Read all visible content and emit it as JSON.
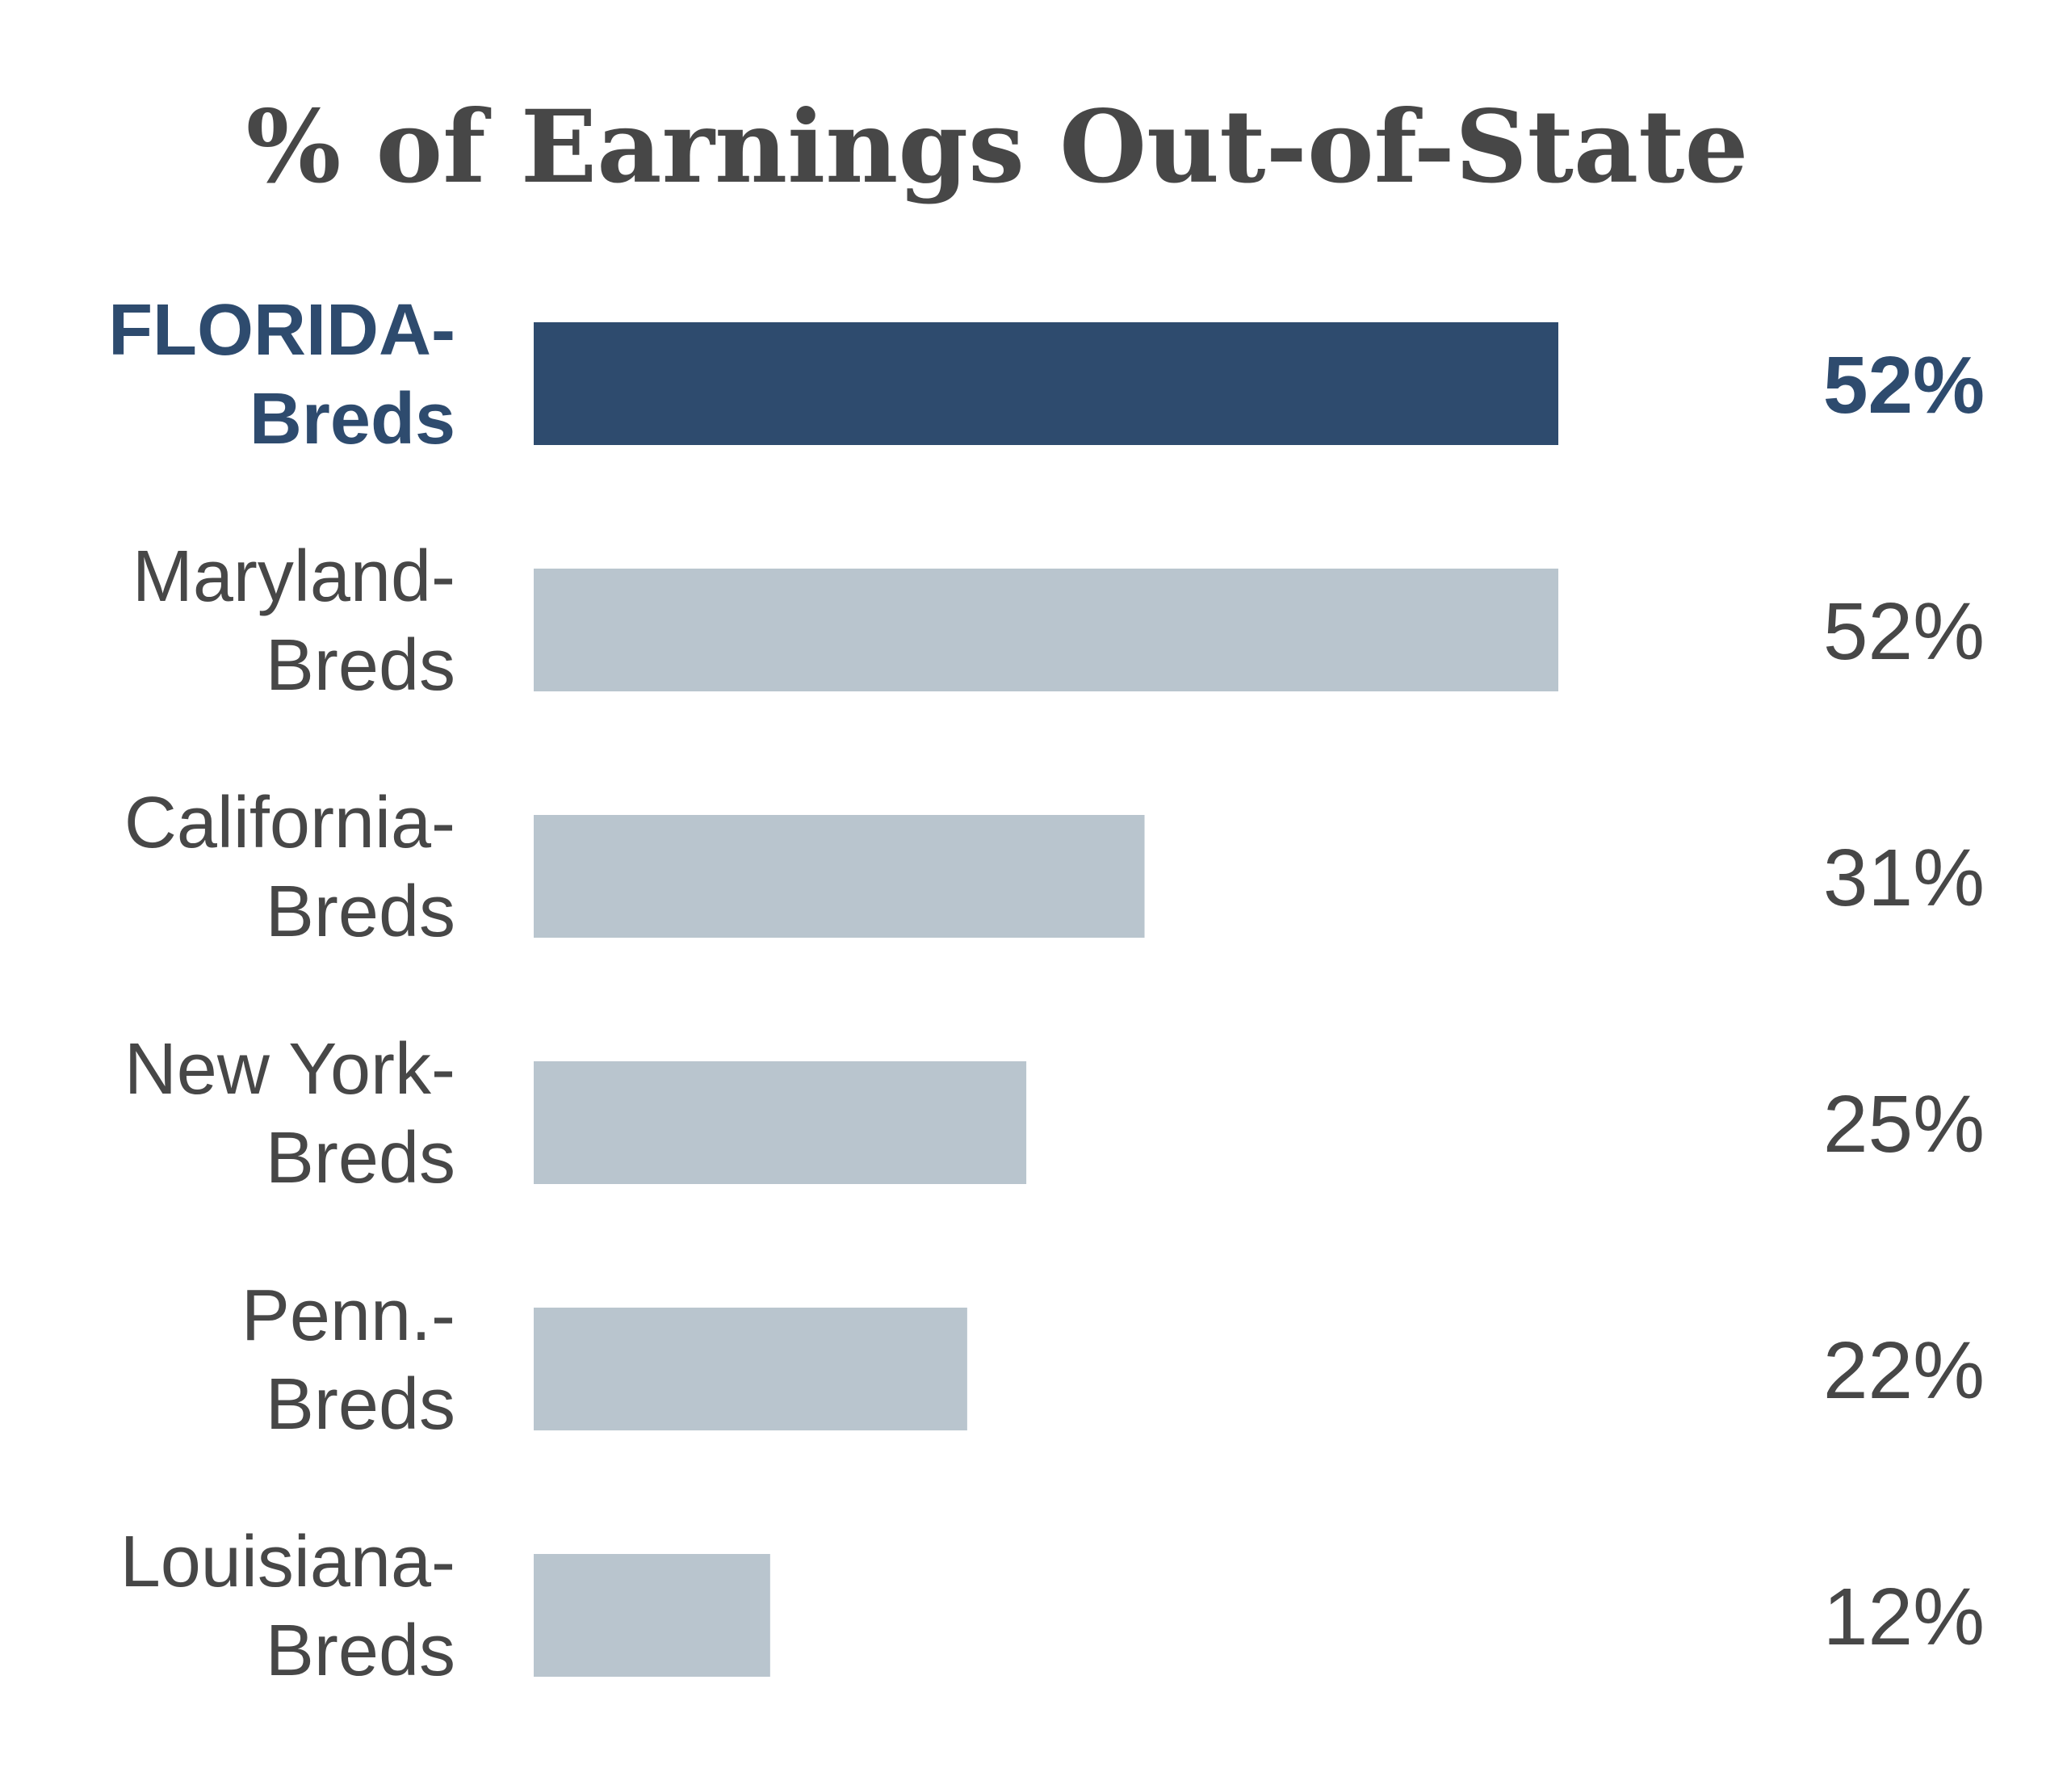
{
  "chart_data": {
    "type": "bar",
    "orientation": "horizontal",
    "title": "% of Earnings Out-of-State",
    "categories": [
      [
        "FLORIDA-",
        "Breds"
      ],
      [
        "Maryland-",
        "Breds"
      ],
      [
        "California-",
        "Breds"
      ],
      [
        "New York-",
        "Breds"
      ],
      [
        "Penn.-",
        "Breds"
      ],
      [
        "Louisiana-",
        "Breds"
      ]
    ],
    "values": [
      52,
      52,
      31,
      25,
      22,
      12
    ],
    "value_labels": [
      "52%",
      "52%",
      "31%",
      "25%",
      "22%",
      "12%"
    ],
    "highlight_index": 0,
    "xlabel": "",
    "ylabel": "",
    "xlim": [
      0,
      52
    ],
    "grid": false,
    "colors": {
      "highlight": "#2e4b6e",
      "default": "#b9c5ce",
      "text": "#474747"
    }
  }
}
